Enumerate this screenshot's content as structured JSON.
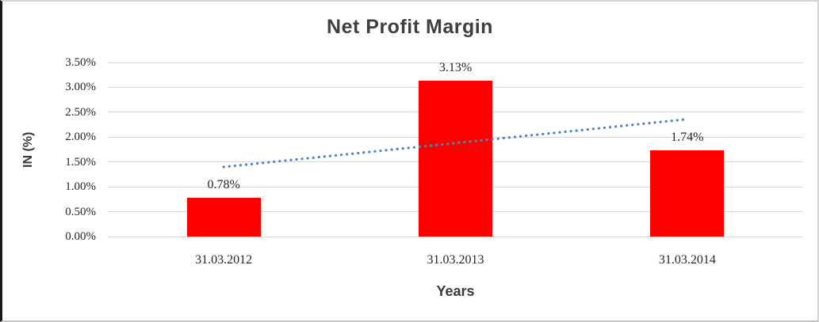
{
  "chart_data": {
    "type": "bar",
    "title": "Net Profit Margin",
    "xlabel": "Years",
    "ylabel": "IN (%)",
    "categories": [
      "31.03.2012",
      "31.03.2013",
      "31.03.2014"
    ],
    "values": [
      0.78,
      3.13,
      1.74
    ],
    "data_labels": [
      "0.78%",
      "3.13%",
      "1.74%"
    ],
    "y_ticks": [
      "0.00%",
      "0.50%",
      "1.00%",
      "1.50%",
      "2.00%",
      "2.50%",
      "3.00%",
      "3.50%"
    ],
    "y_tick_values": [
      0,
      0.5,
      1,
      1.5,
      2,
      2.5,
      3,
      3.5
    ],
    "ylim": [
      0,
      3.5
    ],
    "grid": true,
    "legend": "none",
    "bar_color": "#ff0000",
    "trendline": {
      "type": "linear",
      "style": "dotted",
      "color": "#4e86c4",
      "start_value": 1.4,
      "end_value": 2.36
    }
  }
}
